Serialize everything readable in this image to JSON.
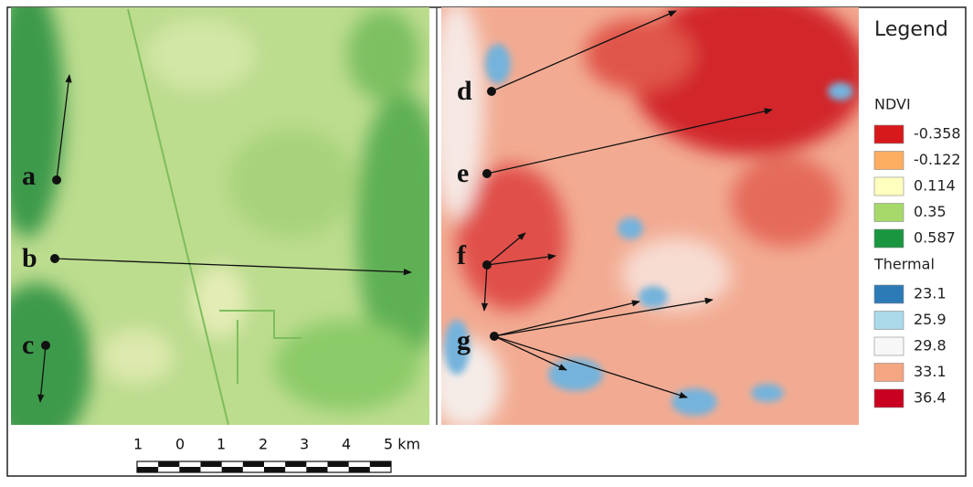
{
  "point_labels": [
    "a",
    "b",
    "c",
    "d",
    "e",
    "f",
    "g"
  ],
  "legend": {
    "title": "Legend",
    "groups": [
      {
        "name": "NDVI",
        "items": [
          {
            "label": "-0.358",
            "color": "#d7191c"
          },
          {
            "label": "-0.122",
            "color": "#fdae61"
          },
          {
            "label": "0.114",
            "color": "#ffffbf"
          },
          {
            "label": "0.35",
            "color": "#a6d96a"
          },
          {
            "label": "0.587",
            "color": "#1a9641"
          }
        ]
      },
      {
        "name": "Thermal",
        "items": [
          {
            "label": "23.1",
            "color": "#2c7bb6"
          },
          {
            "label": "25.9",
            "color": "#abd9e9"
          },
          {
            "label": "29.8",
            "color": "#f7f7f7"
          },
          {
            "label": "33.1",
            "color": "#f4a582"
          },
          {
            "label": "36.4",
            "color": "#ca0020"
          }
        ]
      }
    ]
  },
  "scale_bar": {
    "labels": [
      "1",
      "0",
      "1",
      "2",
      "3",
      "4",
      "5 km"
    ]
  }
}
